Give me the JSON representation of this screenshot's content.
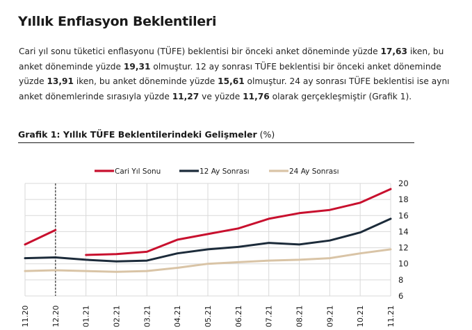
{
  "title": "Yıllık Enflasyon Beklentileri",
  "paragraph": {
    "s1": "Cari yıl sonu tüketici enflasyonu (TÜFE) beklentisi bir önceki anket döneminde yüzde ",
    "v1": "17,63",
    "s2": " iken, bu anket döneminde yüzde ",
    "v2": "19,31",
    "s3": " olmuştur. 12 ay sonrası TÜFE beklentisi bir önceki anket döneminde yüzde ",
    "v3": "13,91",
    "s4": " iken, bu anket döneminde yüzde ",
    "v4": "15,61",
    "s5": " olmuştur. 24 ay sonrası TÜFE beklentisi ise aynı anket dönemlerinde sırasıyla yüzde ",
    "v5": "11,27",
    "s6": " ve yüzde ",
    "v6": "11,76",
    "s7": " olarak gerçekleşmiştir (Grafik 1)."
  },
  "chart_title": {
    "bold": "Grafik 1: Yıllık TÜFE Beklentilerindeki Gelişmeler",
    "unit": " (%)"
  },
  "chart_data": {
    "type": "line",
    "categories": [
      "11.20",
      "12.20",
      "01.21",
      "02.21",
      "03.21",
      "04.21",
      "05.21",
      "06.21",
      "07.21",
      "08.21",
      "09.21",
      "10.21",
      "11.21"
    ],
    "series": [
      {
        "name": "Cari Yıl Sonu",
        "color": "#c8102e",
        "values": [
          12.4,
          14.2,
          null,
          null,
          null,
          null,
          null,
          null,
          null,
          null,
          null,
          null,
          null
        ]
      },
      {
        "name": "Cari Yıl Sonu",
        "color": "#c8102e",
        "legend": false,
        "values": [
          null,
          null,
          11.1,
          11.2,
          11.5,
          13.0,
          13.7,
          14.4,
          15.6,
          16.3,
          16.7,
          17.6,
          19.3
        ]
      },
      {
        "name": "12 Ay Sonrası",
        "color": "#1c2b3a",
        "values": [
          10.7,
          10.8,
          10.5,
          10.3,
          10.4,
          11.3,
          11.8,
          12.1,
          12.6,
          12.4,
          12.9,
          13.9,
          15.6
        ]
      },
      {
        "name": "24 Ay Sonrası",
        "color": "#d9c4a6",
        "values": [
          9.1,
          9.2,
          9.1,
          9.0,
          9.1,
          9.5,
          10.0,
          10.2,
          10.4,
          10.5,
          10.7,
          11.3,
          11.8
        ]
      }
    ],
    "ylim": [
      6,
      20
    ],
    "yticks": [
      6,
      8,
      10,
      12,
      14,
      16,
      18,
      20
    ],
    "yaxis_side": "right",
    "grid": true,
    "legend_position": "top",
    "vline_at": "12.20"
  }
}
